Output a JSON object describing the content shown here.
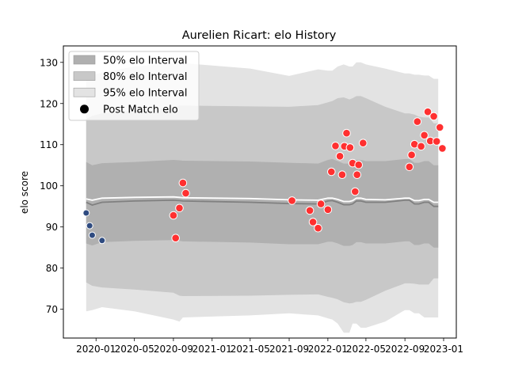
{
  "chart_data": {
    "type": "scatter",
    "title": "Aurelien Ricart: elo History",
    "xlabel": "",
    "ylabel": "elo score",
    "xlim": [
      "2019-09-20",
      "2023-02-10"
    ],
    "ylim": [
      63,
      134
    ],
    "x_ticks": [
      "2020-01",
      "2020-05",
      "2020-09",
      "2021-01",
      "2021-05",
      "2021-09",
      "2022-01",
      "2022-05",
      "2022-09",
      "2023-01"
    ],
    "y_ticks": [
      70,
      80,
      90,
      100,
      110,
      120,
      130
    ],
    "grid": false,
    "legend_position": "top-left",
    "legend": [
      {
        "label": "50% elo Interval",
        "color": "#b0b0b0",
        "kind": "patch"
      },
      {
        "label": "80% elo Interval",
        "color": "#c8c8c8",
        "kind": "patch"
      },
      {
        "label": "95% elo Interval",
        "color": "#e3e3e3",
        "kind": "patch"
      },
      {
        "label": "Post Match elo",
        "color": "#000000",
        "kind": "marker"
      }
    ],
    "colors": {
      "band95": "#e3e3e3",
      "band80": "#c8c8c8",
      "band50": "#b0b0b0",
      "mean_line": "#808080",
      "white_line": "#ffffff",
      "points_early": "#2f4b80",
      "points_late": "#ff3030"
    },
    "bands": {
      "dates": [
        "2019-12-01",
        "2019-12-20",
        "2020-01-20",
        "2020-05-01",
        "2020-09-01",
        "2020-09-20",
        "2020-10-01",
        "2021-05-01",
        "2021-09-01",
        "2021-12-01",
        "2022-01-01",
        "2022-01-15",
        "2022-02-01",
        "2022-02-20",
        "2022-03-10",
        "2022-03-20",
        "2022-04-01",
        "2022-04-15",
        "2022-05-01",
        "2022-07-01",
        "2022-09-01",
        "2022-09-15",
        "2022-10-01",
        "2022-10-15",
        "2022-11-01",
        "2022-11-15",
        "2022-12-01",
        "2022-12-15"
      ],
      "mean": [
        96.0,
        95.3,
        96.0,
        96.3,
        96.5,
        96.4,
        96.3,
        96.0,
        95.7,
        95.6,
        96.3,
        96.4,
        96.0,
        95.4,
        95.4,
        95.6,
        96.3,
        96.3,
        96.0,
        96.0,
        96.5,
        96.5,
        95.6,
        95.6,
        96.0,
        96.0,
        95.0,
        95.0
      ],
      "upper": [
        96.8,
        96.5,
        97.0,
        97.2,
        97.3,
        97.2,
        97.1,
        96.9,
        96.6,
        96.5,
        97.0,
        97.0,
        96.7,
        96.2,
        96.2,
        96.4,
        97.0,
        97.0,
        96.7,
        96.6,
        97.0,
        97.0,
        96.4,
        96.4,
        96.7,
        96.7,
        96.0,
        96.0
      ],
      "lo50": [
        86.0,
        85.5,
        86.3,
        86.6,
        86.8,
        86.6,
        86.5,
        86.2,
        85.8,
        85.8,
        86.4,
        86.4,
        86.0,
        85.4,
        85.4,
        85.6,
        86.3,
        86.3,
        86.0,
        86.0,
        86.5,
        86.5,
        85.6,
        85.6,
        86.0,
        86.0,
        85.0,
        85.0
      ],
      "hi50": [
        105.8,
        105.0,
        105.5,
        105.8,
        106.3,
        106.2,
        106.1,
        105.9,
        105.6,
        105.4,
        106.3,
        106.5,
        106.0,
        105.4,
        105.4,
        105.6,
        106.3,
        106.3,
        106.0,
        106.0,
        106.5,
        106.5,
        105.6,
        105.6,
        106.0,
        106.0,
        105.0,
        105.0
      ],
      "lo80": [
        76.5,
        75.7,
        75.3,
        74.8,
        74.0,
        73.3,
        73.2,
        73.3,
        73.5,
        73.6,
        73.0,
        72.8,
        72.4,
        71.7,
        71.4,
        71.5,
        71.8,
        71.8,
        72.3,
        74.5,
        76.3,
        76.3,
        76.2,
        76.0,
        76.0,
        76.0,
        77.5,
        77.5
      ],
      "hi80": [
        116.2,
        117.0,
        117.6,
        118.3,
        119.0,
        119.5,
        119.5,
        119.3,
        119.2,
        119.6,
        120.3,
        120.6,
        121.3,
        121.5,
        121.0,
        121.3,
        121.8,
        121.8,
        121.3,
        119.2,
        117.6,
        117.6,
        117.3,
        116.8,
        116.6,
        116.6,
        115.2,
        115.2
      ],
      "lo95": [
        69.5,
        69.8,
        70.5,
        69.5,
        67.5,
        67.0,
        68.0,
        68.5,
        69.0,
        68.5,
        67.8,
        67.5,
        66.5,
        64.3,
        64.3,
        66.5,
        66.5,
        65.5,
        65.5,
        67.0,
        69.8,
        69.8,
        69.0,
        69.0,
        68.0,
        68.0,
        68.0,
        68.0
      ],
      "hi95": [
        126.0,
        127.0,
        127.5,
        129.0,
        129.8,
        130.2,
        129.8,
        128.5,
        126.7,
        128.3,
        128.0,
        128.0,
        129.0,
        129.5,
        129.0,
        129.0,
        130.0,
        130.0,
        129.5,
        128.5,
        127.3,
        127.3,
        127.0,
        127.0,
        126.8,
        126.8,
        126.0,
        126.0
      ]
    },
    "series": [
      {
        "group": "early",
        "points": [
          [
            "2019-12-01",
            93.4
          ],
          [
            "2019-12-12",
            90.3
          ],
          [
            "2019-12-20",
            88.0
          ],
          [
            "2020-01-20",
            86.7
          ]
        ]
      },
      {
        "group": "late",
        "points": [
          [
            "2020-09-01",
            92.8
          ],
          [
            "2020-09-08",
            87.3
          ],
          [
            "2020-09-20",
            94.6
          ],
          [
            "2020-10-01",
            100.7
          ],
          [
            "2020-10-10",
            98.2
          ],
          [
            "2021-09-10",
            96.4
          ],
          [
            "2021-11-05",
            94.0
          ],
          [
            "2021-11-15",
            91.2
          ],
          [
            "2021-12-01",
            89.7
          ],
          [
            "2021-12-10",
            95.6
          ],
          [
            "2022-01-01",
            94.2
          ],
          [
            "2022-01-12",
            103.4
          ],
          [
            "2022-01-25",
            109.7
          ],
          [
            "2022-02-08",
            107.2
          ],
          [
            "2022-02-15",
            102.7
          ],
          [
            "2022-02-22",
            109.6
          ],
          [
            "2022-03-01",
            112.8
          ],
          [
            "2022-03-12",
            109.3
          ],
          [
            "2022-03-20",
            105.5
          ],
          [
            "2022-03-28",
            98.6
          ],
          [
            "2022-04-03",
            102.7
          ],
          [
            "2022-04-08",
            105.1
          ],
          [
            "2022-04-22",
            110.4
          ],
          [
            "2022-09-15",
            104.6
          ],
          [
            "2022-09-22",
            107.5
          ],
          [
            "2022-10-01",
            110.1
          ],
          [
            "2022-10-10",
            115.6
          ],
          [
            "2022-10-22",
            109.6
          ],
          [
            "2022-11-01",
            112.3
          ],
          [
            "2022-11-12",
            118.0
          ],
          [
            "2022-11-20",
            110.9
          ],
          [
            "2022-12-01",
            116.9
          ],
          [
            "2022-12-10",
            110.8
          ],
          [
            "2022-12-20",
            114.2
          ],
          [
            "2022-12-28",
            109.1
          ]
        ]
      }
    ]
  }
}
